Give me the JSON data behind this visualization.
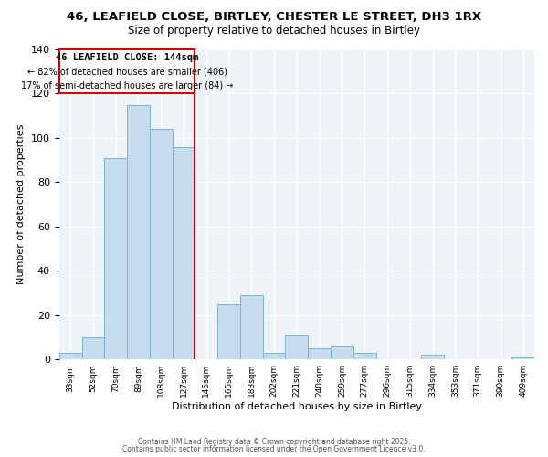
{
  "title": "46, LEAFIELD CLOSE, BIRTLEY, CHESTER LE STREET, DH3 1RX",
  "subtitle": "Size of property relative to detached houses in Birtley",
  "xlabel": "Distribution of detached houses by size in Birtley",
  "ylabel": "Number of detached properties",
  "bar_labels": [
    "33sqm",
    "52sqm",
    "70sqm",
    "89sqm",
    "108sqm",
    "127sqm",
    "146sqm",
    "165sqm",
    "183sqm",
    "202sqm",
    "221sqm",
    "240sqm",
    "259sqm",
    "277sqm",
    "296sqm",
    "315sqm",
    "334sqm",
    "353sqm",
    "371sqm",
    "390sqm",
    "409sqm"
  ],
  "bar_values": [
    3,
    10,
    91,
    115,
    104,
    96,
    0,
    25,
    29,
    3,
    11,
    5,
    6,
    3,
    0,
    0,
    2,
    0,
    0,
    0,
    1
  ],
  "bar_color": "#c6ddf0",
  "bar_edge_color": "#7ab3d4",
  "vline_color": "#cc0000",
  "annotation_title": "46 LEAFIELD CLOSE: 144sqm",
  "annotation_line1": "← 82% of detached houses are smaller (406)",
  "annotation_line2": "17% of semi-detached houses are larger (84) →",
  "annotation_box_color": "#cc0000",
  "ylim": [
    0,
    140
  ],
  "yticks": [
    0,
    20,
    40,
    60,
    80,
    100,
    120,
    140
  ],
  "footer1": "Contains HM Land Registry data © Crown copyright and database right 2025.",
  "footer2": "Contains public sector information licensed under the Open Government Licence v3.0.",
  "background_color": "#ffffff",
  "grid_color": "#d0dce8"
}
